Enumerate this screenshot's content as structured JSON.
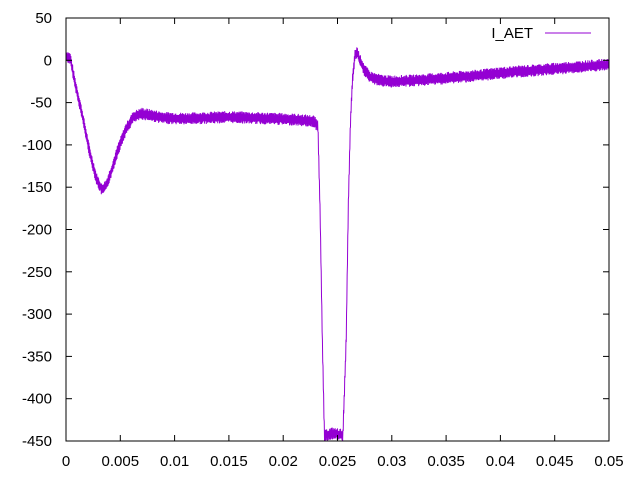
{
  "chart_data": {
    "type": "line",
    "title": "",
    "xlabel": "",
    "ylabel": "",
    "xlim": [
      0,
      0.05
    ],
    "ylim": [
      -450,
      50
    ],
    "xticks": [
      0,
      0.005,
      0.01,
      0.015,
      0.02,
      0.025,
      0.03,
      0.035,
      0.04,
      0.045,
      0.05
    ],
    "xtick_labels": [
      "0",
      "0.005",
      "0.01",
      "0.015",
      "0.02",
      "0.025",
      "0.03",
      "0.035",
      "0.04",
      "0.045",
      "0.05"
    ],
    "yticks": [
      50,
      0,
      -50,
      -100,
      -150,
      -200,
      -250,
      -300,
      -350,
      -400,
      -450
    ],
    "ytick_labels": [
      "50",
      "0",
      "-50",
      "-100",
      "-150",
      "-200",
      "-250",
      "-300",
      "-350",
      "-400",
      "-450"
    ],
    "grid": false,
    "legend_position": "top-right",
    "series": [
      {
        "name": "I_AET",
        "color": "#9400d3",
        "x": [
          0,
          0.0004,
          0.0008,
          0.0015,
          0.0022,
          0.0028,
          0.0033,
          0.0037,
          0.0042,
          0.0048,
          0.0055,
          0.0062,
          0.007,
          0.0078,
          0.009,
          0.011,
          0.013,
          0.015,
          0.017,
          0.019,
          0.021,
          0.0228,
          0.0232,
          0.0234,
          0.0236,
          0.0238,
          0.024,
          0.0245,
          0.025,
          0.0255,
          0.0258,
          0.026,
          0.0262,
          0.0264,
          0.0266,
          0.0268,
          0.027,
          0.0275,
          0.028,
          0.029,
          0.03,
          0.032,
          0.034,
          0.036,
          0.038,
          0.04,
          0.042,
          0.044,
          0.046,
          0.048,
          0.05
        ],
        "y": [
          5,
          2,
          -25,
          -65,
          -110,
          -140,
          -153,
          -148,
          -130,
          -105,
          -82,
          -67,
          -63,
          -65,
          -68,
          -69,
          -68,
          -67,
          -68,
          -69,
          -70,
          -72,
          -78,
          -180,
          -330,
          -445,
          -443,
          -441,
          -442,
          -443,
          -330,
          -170,
          -70,
          -20,
          5,
          10,
          2,
          -12,
          -20,
          -24,
          -25,
          -24,
          -22,
          -20,
          -18,
          -15,
          -13,
          -11,
          -9,
          -7,
          -5
        ]
      }
    ]
  }
}
